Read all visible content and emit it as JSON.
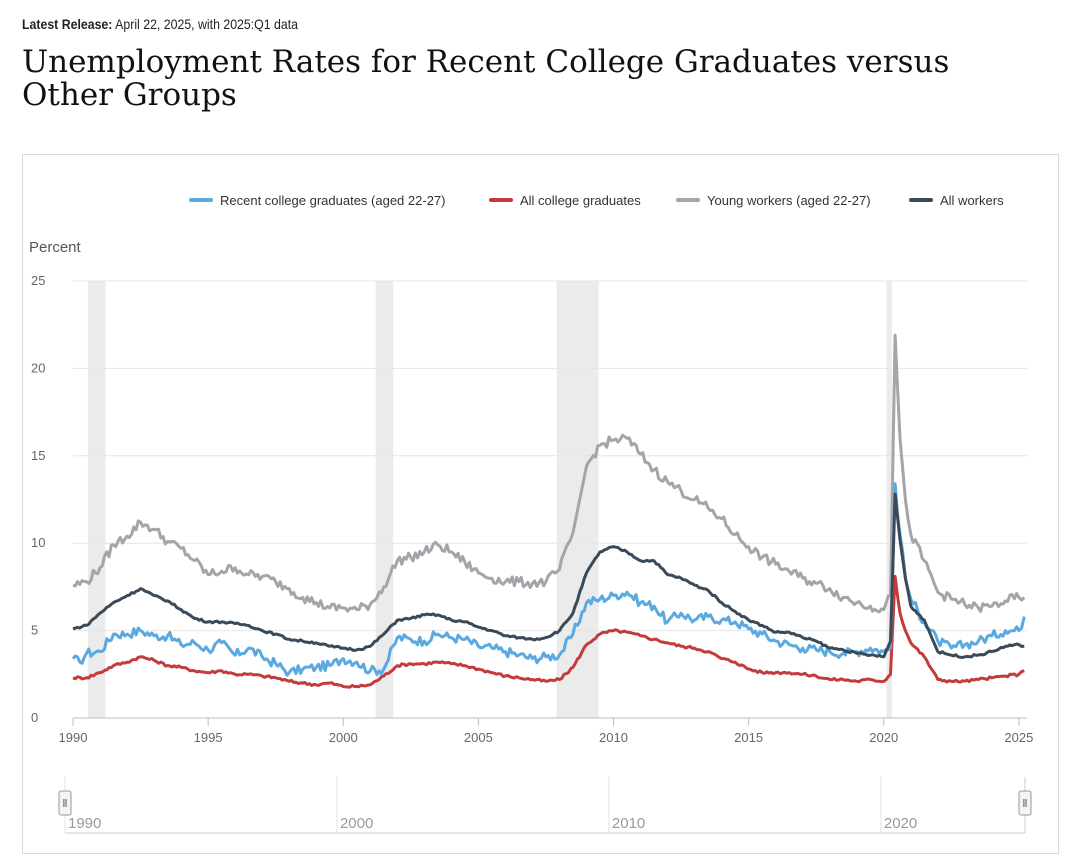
{
  "header": {
    "release_label": "Latest Release:",
    "release_text": "April 22, 2025, with 2025:Q1 data",
    "title": "Unemployment Rates for Recent College Graduates versus Other Groups"
  },
  "navigator": {
    "labels": [
      "1990",
      "2000",
      "2010",
      "2020"
    ],
    "handle_glyph": "Ⅱ"
  },
  "chart_data": {
    "type": "line",
    "ylabel": "Percent",
    "ylim": [
      0,
      25
    ],
    "yticks": [
      0,
      5,
      10,
      15,
      20,
      25
    ],
    "xlim": [
      1990,
      2025.3
    ],
    "xticks": [
      "1990",
      "1995",
      "2000",
      "2005",
      "2010",
      "2015",
      "2020",
      "2025"
    ],
    "grid": true,
    "legend_position": "top-right",
    "recessions": [
      [
        1990.55,
        1991.2
      ],
      [
        2001.2,
        2001.85
      ],
      [
        2007.9,
        2009.45
      ],
      [
        2020.1,
        2020.3
      ]
    ],
    "series": [
      {
        "name": "Recent college graduates (aged 22-27)",
        "color": "#5aa9e0",
        "points": [
          [
            1990.0,
            3.4
          ],
          [
            1990.25,
            3.2
          ],
          [
            1990.5,
            3.7
          ],
          [
            1991.0,
            3.8
          ],
          [
            1991.5,
            4.8
          ],
          [
            1992.0,
            4.8
          ],
          [
            1992.5,
            5.0
          ],
          [
            1993.0,
            4.7
          ],
          [
            1993.5,
            4.7
          ],
          [
            1994.0,
            4.2
          ],
          [
            1994.5,
            4.3
          ],
          [
            1995.0,
            3.9
          ],
          [
            1995.5,
            4.3
          ],
          [
            1996.0,
            3.6
          ],
          [
            1996.5,
            4.0
          ],
          [
            1997.0,
            3.5
          ],
          [
            1997.5,
            3.1
          ],
          [
            1998.0,
            2.6
          ],
          [
            1998.5,
            2.8
          ],
          [
            1999.0,
            2.9
          ],
          [
            1999.5,
            3.0
          ],
          [
            2000.0,
            3.4
          ],
          [
            2000.5,
            3.2
          ],
          [
            2001.0,
            2.7
          ],
          [
            2001.5,
            2.8
          ],
          [
            2002.0,
            4.6
          ],
          [
            2002.5,
            4.5
          ],
          [
            2003.0,
            4.4
          ],
          [
            2003.5,
            4.8
          ],
          [
            2004.0,
            4.6
          ],
          [
            2004.5,
            4.5
          ],
          [
            2005.0,
            4.1
          ],
          [
            2005.5,
            4.0
          ],
          [
            2006.0,
            3.8
          ],
          [
            2006.5,
            3.6
          ],
          [
            2007.0,
            3.4
          ],
          [
            2007.5,
            3.5
          ],
          [
            2008.0,
            3.6
          ],
          [
            2008.5,
            4.8
          ],
          [
            2009.0,
            6.6
          ],
          [
            2009.5,
            6.8
          ],
          [
            2010.0,
            7.0
          ],
          [
            2010.5,
            7.2
          ],
          [
            2011.0,
            6.6
          ],
          [
            2011.5,
            6.4
          ],
          [
            2012.0,
            5.5
          ],
          [
            2012.5,
            6.0
          ],
          [
            2013.0,
            5.6
          ],
          [
            2013.5,
            5.8
          ],
          [
            2014.0,
            5.6
          ],
          [
            2014.5,
            5.5
          ],
          [
            2015.0,
            5.1
          ],
          [
            2015.5,
            4.8
          ],
          [
            2016.0,
            4.4
          ],
          [
            2016.5,
            4.2
          ],
          [
            2017.0,
            4.0
          ],
          [
            2017.5,
            3.9
          ],
          [
            2018.0,
            3.8
          ],
          [
            2018.5,
            3.7
          ],
          [
            2019.0,
            3.8
          ],
          [
            2019.5,
            4.0
          ],
          [
            2020.0,
            3.8
          ],
          [
            2020.25,
            4.0
          ],
          [
            2020.42,
            13.4
          ],
          [
            2020.6,
            10.5
          ],
          [
            2020.8,
            8.0
          ],
          [
            2021.0,
            6.8
          ],
          [
            2021.5,
            5.5
          ],
          [
            2022.0,
            4.4
          ],
          [
            2022.5,
            4.0
          ],
          [
            2023.0,
            4.2
          ],
          [
            2023.5,
            4.4
          ],
          [
            2024.0,
            4.7
          ],
          [
            2024.5,
            5.0
          ],
          [
            2025.0,
            5.0
          ],
          [
            2025.2,
            5.8
          ]
        ]
      },
      {
        "name": "All college graduates",
        "color": "#c33b3b",
        "points": [
          [
            1990.0,
            2.3
          ],
          [
            1990.5,
            2.3
          ],
          [
            1991.0,
            2.6
          ],
          [
            1991.5,
            3.0
          ],
          [
            1992.0,
            3.2
          ],
          [
            1992.5,
            3.5
          ],
          [
            1993.0,
            3.3
          ],
          [
            1993.5,
            3.0
          ],
          [
            1994.0,
            2.9
          ],
          [
            1994.5,
            2.7
          ],
          [
            1995.0,
            2.6
          ],
          [
            1995.5,
            2.7
          ],
          [
            1996.0,
            2.5
          ],
          [
            1996.5,
            2.5
          ],
          [
            1997.0,
            2.4
          ],
          [
            1997.5,
            2.3
          ],
          [
            1998.0,
            2.1
          ],
          [
            1998.5,
            2.0
          ],
          [
            1999.0,
            1.9
          ],
          [
            1999.5,
            2.0
          ],
          [
            2000.0,
            1.8
          ],
          [
            2000.5,
            1.8
          ],
          [
            2001.0,
            1.9
          ],
          [
            2001.5,
            2.4
          ],
          [
            2002.0,
            3.0
          ],
          [
            2002.5,
            3.1
          ],
          [
            2003.0,
            3.1
          ],
          [
            2003.5,
            3.2
          ],
          [
            2004.0,
            3.1
          ],
          [
            2004.5,
            3.0
          ],
          [
            2005.0,
            2.8
          ],
          [
            2005.5,
            2.6
          ],
          [
            2006.0,
            2.4
          ],
          [
            2006.5,
            2.3
          ],
          [
            2007.0,
            2.2
          ],
          [
            2007.5,
            2.1
          ],
          [
            2008.0,
            2.2
          ],
          [
            2008.5,
            2.9
          ],
          [
            2009.0,
            4.2
          ],
          [
            2009.5,
            4.8
          ],
          [
            2010.0,
            5.0
          ],
          [
            2010.5,
            4.9
          ],
          [
            2011.0,
            4.7
          ],
          [
            2011.5,
            4.5
          ],
          [
            2012.0,
            4.3
          ],
          [
            2012.5,
            4.1
          ],
          [
            2013.0,
            4.0
          ],
          [
            2013.5,
            3.8
          ],
          [
            2014.0,
            3.4
          ],
          [
            2014.5,
            3.2
          ],
          [
            2015.0,
            2.8
          ],
          [
            2015.5,
            2.6
          ],
          [
            2016.0,
            2.6
          ],
          [
            2016.5,
            2.6
          ],
          [
            2017.0,
            2.5
          ],
          [
            2017.5,
            2.4
          ],
          [
            2018.0,
            2.2
          ],
          [
            2018.5,
            2.2
          ],
          [
            2019.0,
            2.1
          ],
          [
            2019.5,
            2.2
          ],
          [
            2020.0,
            2.1
          ],
          [
            2020.25,
            2.5
          ],
          [
            2020.42,
            8.1
          ],
          [
            2020.6,
            6.0
          ],
          [
            2020.8,
            5.0
          ],
          [
            2021.0,
            4.3
          ],
          [
            2021.5,
            3.5
          ],
          [
            2022.0,
            2.2
          ],
          [
            2022.5,
            2.1
          ],
          [
            2023.0,
            2.1
          ],
          [
            2023.5,
            2.2
          ],
          [
            2024.0,
            2.3
          ],
          [
            2024.5,
            2.4
          ],
          [
            2025.0,
            2.5
          ],
          [
            2025.2,
            2.7
          ]
        ]
      },
      {
        "name": "Young workers (aged 22-27)",
        "color": "#a5a4ab",
        "points": [
          [
            1990.0,
            7.6
          ],
          [
            1990.5,
            7.8
          ],
          [
            1991.0,
            8.6
          ],
          [
            1991.5,
            9.9
          ],
          [
            1992.0,
            10.4
          ],
          [
            1992.5,
            11.2
          ],
          [
            1993.0,
            10.8
          ],
          [
            1993.5,
            10.1
          ],
          [
            1994.0,
            9.7
          ],
          [
            1994.5,
            9.0
          ],
          [
            1995.0,
            8.2
          ],
          [
            1995.5,
            8.4
          ],
          [
            1996.0,
            8.6
          ],
          [
            1996.5,
            8.2
          ],
          [
            1997.0,
            8.1
          ],
          [
            1997.5,
            7.8
          ],
          [
            1998.0,
            7.4
          ],
          [
            1998.5,
            6.9
          ],
          [
            1999.0,
            6.6
          ],
          [
            1999.5,
            6.3
          ],
          [
            2000.0,
            6.3
          ],
          [
            2000.5,
            6.2
          ],
          [
            2001.0,
            6.5
          ],
          [
            2001.5,
            7.5
          ],
          [
            2002.0,
            9.0
          ],
          [
            2002.5,
            9.2
          ],
          [
            2003.0,
            9.5
          ],
          [
            2003.5,
            9.9
          ],
          [
            2004.0,
            9.5
          ],
          [
            2004.5,
            8.9
          ],
          [
            2005.0,
            8.3
          ],
          [
            2005.5,
            8.0
          ],
          [
            2006.0,
            7.8
          ],
          [
            2006.5,
            7.8
          ],
          [
            2007.0,
            7.7
          ],
          [
            2007.5,
            7.8
          ],
          [
            2008.0,
            8.5
          ],
          [
            2008.5,
            10.6
          ],
          [
            2009.0,
            14.4
          ],
          [
            2009.5,
            15.6
          ],
          [
            2010.0,
            15.9
          ],
          [
            2010.5,
            16.0
          ],
          [
            2011.0,
            15.1
          ],
          [
            2011.5,
            14.2
          ],
          [
            2012.0,
            13.5
          ],
          [
            2012.5,
            13.0
          ],
          [
            2013.0,
            12.5
          ],
          [
            2013.5,
            12.0
          ],
          [
            2014.0,
            11.4
          ],
          [
            2014.5,
            10.5
          ],
          [
            2015.0,
            9.8
          ],
          [
            2015.5,
            9.2
          ],
          [
            2016.0,
            8.8
          ],
          [
            2016.5,
            8.4
          ],
          [
            2017.0,
            8.0
          ],
          [
            2017.5,
            7.7
          ],
          [
            2018.0,
            7.4
          ],
          [
            2018.5,
            6.9
          ],
          [
            2019.0,
            6.6
          ],
          [
            2019.5,
            6.4
          ],
          [
            2020.0,
            6.2
          ],
          [
            2020.25,
            7.0
          ],
          [
            2020.42,
            21.9
          ],
          [
            2020.6,
            16.0
          ],
          [
            2020.8,
            12.5
          ],
          [
            2021.0,
            10.5
          ],
          [
            2021.5,
            9.0
          ],
          [
            2022.0,
            7.2
          ],
          [
            2022.5,
            6.8
          ],
          [
            2023.0,
            6.5
          ],
          [
            2023.5,
            6.3
          ],
          [
            2024.0,
            6.4
          ],
          [
            2024.5,
            6.7
          ],
          [
            2025.0,
            6.9
          ],
          [
            2025.2,
            6.9
          ]
        ]
      },
      {
        "name": "All workers",
        "color": "#3a4a58",
        "points": [
          [
            1990.0,
            5.1
          ],
          [
            1990.5,
            5.3
          ],
          [
            1991.0,
            6.0
          ],
          [
            1991.5,
            6.6
          ],
          [
            1992.0,
            7.0
          ],
          [
            1992.5,
            7.4
          ],
          [
            1993.0,
            7.0
          ],
          [
            1993.5,
            6.7
          ],
          [
            1994.0,
            6.2
          ],
          [
            1994.5,
            5.7
          ],
          [
            1995.0,
            5.5
          ],
          [
            1995.5,
            5.5
          ],
          [
            1996.0,
            5.4
          ],
          [
            1996.5,
            5.3
          ],
          [
            1997.0,
            5.0
          ],
          [
            1997.5,
            4.8
          ],
          [
            1998.0,
            4.5
          ],
          [
            1998.5,
            4.4
          ],
          [
            1999.0,
            4.3
          ],
          [
            1999.5,
            4.1
          ],
          [
            2000.0,
            4.0
          ],
          [
            2000.5,
            3.9
          ],
          [
            2001.0,
            4.1
          ],
          [
            2001.5,
            4.8
          ],
          [
            2002.0,
            5.6
          ],
          [
            2002.5,
            5.7
          ],
          [
            2003.0,
            5.9
          ],
          [
            2003.5,
            5.9
          ],
          [
            2004.0,
            5.6
          ],
          [
            2004.5,
            5.5
          ],
          [
            2005.0,
            5.2
          ],
          [
            2005.5,
            5.0
          ],
          [
            2006.0,
            4.7
          ],
          [
            2006.5,
            4.6
          ],
          [
            2007.0,
            4.5
          ],
          [
            2007.5,
            4.6
          ],
          [
            2008.0,
            5.0
          ],
          [
            2008.5,
            6.0
          ],
          [
            2009.0,
            8.3
          ],
          [
            2009.5,
            9.5
          ],
          [
            2010.0,
            9.8
          ],
          [
            2010.5,
            9.5
          ],
          [
            2011.0,
            9.0
          ],
          [
            2011.5,
            9.0
          ],
          [
            2012.0,
            8.2
          ],
          [
            2012.5,
            8.0
          ],
          [
            2013.0,
            7.6
          ],
          [
            2013.5,
            7.3
          ],
          [
            2014.0,
            6.6
          ],
          [
            2014.5,
            6.1
          ],
          [
            2015.0,
            5.6
          ],
          [
            2015.5,
            5.3
          ],
          [
            2016.0,
            4.9
          ],
          [
            2016.5,
            4.9
          ],
          [
            2017.0,
            4.6
          ],
          [
            2017.5,
            4.4
          ],
          [
            2018.0,
            4.0
          ],
          [
            2018.5,
            3.9
          ],
          [
            2019.0,
            3.7
          ],
          [
            2019.5,
            3.6
          ],
          [
            2020.0,
            3.5
          ],
          [
            2020.25,
            4.4
          ],
          [
            2020.42,
            12.8
          ],
          [
            2020.6,
            10.2
          ],
          [
            2020.8,
            8.0
          ],
          [
            2021.0,
            6.4
          ],
          [
            2021.5,
            5.6
          ],
          [
            2022.0,
            3.8
          ],
          [
            2022.5,
            3.6
          ],
          [
            2023.0,
            3.5
          ],
          [
            2023.5,
            3.6
          ],
          [
            2024.0,
            3.8
          ],
          [
            2024.5,
            4.1
          ],
          [
            2025.0,
            4.2
          ],
          [
            2025.2,
            4.1
          ]
        ]
      }
    ]
  }
}
